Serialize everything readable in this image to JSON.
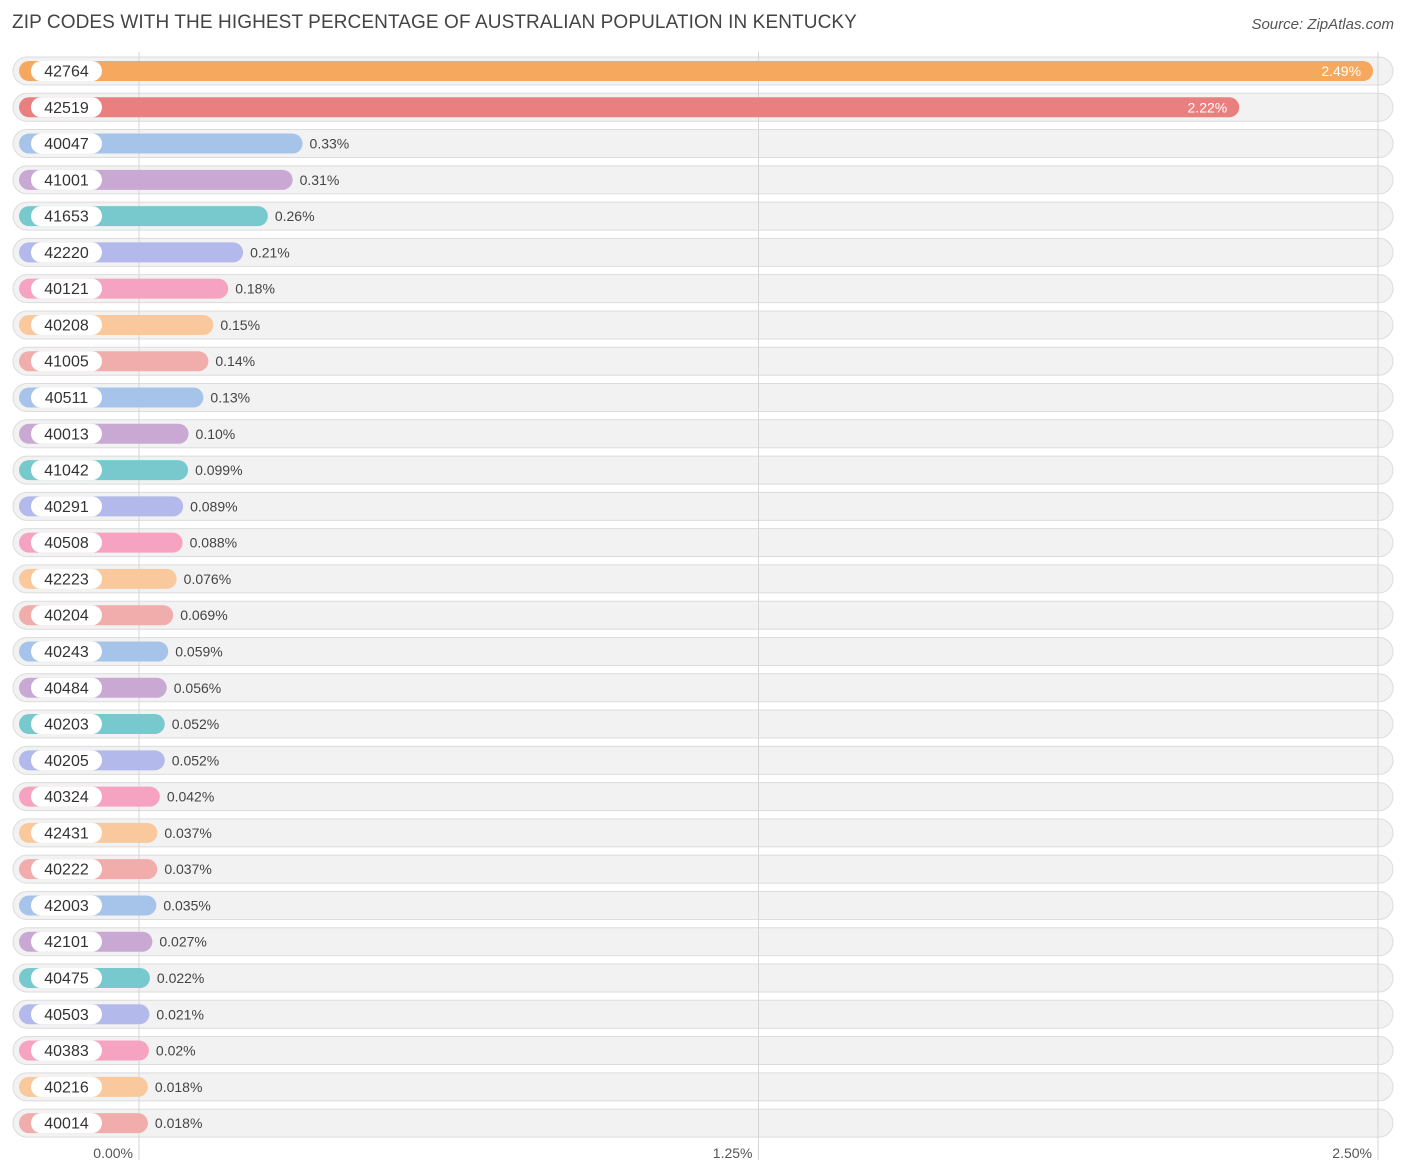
{
  "header": {
    "title": "ZIP CODES WITH THE HIGHEST PERCENTAGE OF AUSTRALIAN POPULATION IN KENTUCKY",
    "source": "Source: ZipAtlas.com"
  },
  "chart_data": {
    "type": "bar",
    "orientation": "horizontal",
    "title": "ZIP CODES WITH THE HIGHEST PERCENTAGE OF AUSTRALIAN POPULATION IN KENTUCKY",
    "xlabel": "",
    "ylabel": "",
    "xlim": [
      0,
      2.5
    ],
    "xticks": [
      0,
      1.25,
      2.5
    ],
    "xtick_labels": [
      "0.00%",
      "1.25%",
      "2.50%"
    ],
    "grid": true,
    "categories": [
      "42764",
      "42519",
      "40047",
      "41001",
      "41653",
      "42220",
      "40121",
      "40208",
      "41005",
      "40511",
      "40013",
      "41042",
      "40291",
      "40508",
      "42223",
      "40204",
      "40243",
      "40484",
      "40203",
      "40205",
      "40324",
      "42431",
      "40222",
      "42003",
      "42101",
      "40475",
      "40503",
      "40383",
      "40216",
      "40014"
    ],
    "values": [
      2.49,
      2.22,
      0.33,
      0.31,
      0.26,
      0.21,
      0.18,
      0.15,
      0.14,
      0.13,
      0.1,
      0.099,
      0.089,
      0.088,
      0.076,
      0.069,
      0.059,
      0.056,
      0.052,
      0.052,
      0.042,
      0.037,
      0.037,
      0.035,
      0.027,
      0.022,
      0.021,
      0.02,
      0.018,
      0.018
    ],
    "value_labels": [
      "2.49%",
      "2.22%",
      "0.33%",
      "0.31%",
      "0.26%",
      "0.21%",
      "0.18%",
      "0.15%",
      "0.14%",
      "0.13%",
      "0.10%",
      "0.099%",
      "0.089%",
      "0.088%",
      "0.076%",
      "0.069%",
      "0.059%",
      "0.056%",
      "0.052%",
      "0.052%",
      "0.042%",
      "0.037%",
      "0.037%",
      "0.035%",
      "0.027%",
      "0.022%",
      "0.021%",
      "0.02%",
      "0.018%",
      "0.018%"
    ],
    "colors": [
      "#f6a95e",
      "#e97f7f",
      "#a6c4ea",
      "#c9a9d3",
      "#78c9cd",
      "#b3b9ea",
      "#f5a3c0",
      "#f9c99d",
      "#f0adab",
      "#a6c4ea",
      "#c9a9d3",
      "#78c9cd",
      "#b3b9ea",
      "#f5a3c0",
      "#f9c99d",
      "#f0adab",
      "#a6c4ea",
      "#c9a9d3",
      "#78c9cd",
      "#b3b9ea",
      "#f5a3c0",
      "#f9c99d",
      "#f0adab",
      "#a6c4ea",
      "#c9a9d3",
      "#78c9cd",
      "#b3b9ea",
      "#f5a3c0",
      "#f9c99d",
      "#f0adab"
    ]
  }
}
